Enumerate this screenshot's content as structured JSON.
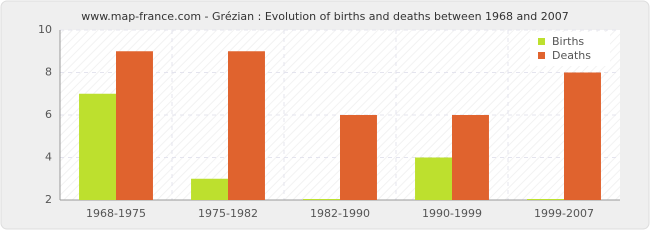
{
  "chart_data": {
    "type": "bar",
    "title": "www.map-france.com - Grézian : Evolution of births and deaths between 1968 and 2007",
    "categories": [
      "1968-1975",
      "1975-1982",
      "1982-1990",
      "1990-1999",
      "1999-2007"
    ],
    "series": [
      {
        "name": "Births",
        "color": "#bde02e",
        "values": [
          7,
          3,
          2,
          4,
          2
        ]
      },
      {
        "name": "Deaths",
        "color": "#e0632e",
        "values": [
          9,
          9,
          6,
          6,
          8
        ]
      }
    ],
    "ylim": [
      2,
      10
    ],
    "yticks": [
      2,
      4,
      6,
      8,
      10
    ],
    "grid": true,
    "legend": "top-right"
  }
}
